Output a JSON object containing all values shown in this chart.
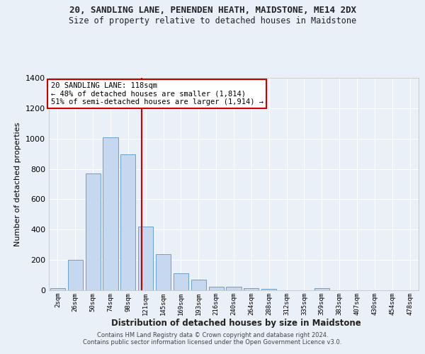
{
  "title": "20, SANDLING LANE, PENENDEN HEATH, MAIDSTONE, ME14 2DX",
  "subtitle": "Size of property relative to detached houses in Maidstone",
  "xlabel": "Distribution of detached houses by size in Maidstone",
  "ylabel": "Number of detached properties",
  "bar_color": "#c5d8ef",
  "bar_edge_color": "#6aa0cc",
  "background_color": "#eaf0f8",
  "grid_color": "#ffffff",
  "categories": [
    "2sqm",
    "26sqm",
    "50sqm",
    "74sqm",
    "98sqm",
    "121sqm",
    "145sqm",
    "169sqm",
    "193sqm",
    "216sqm",
    "240sqm",
    "264sqm",
    "288sqm",
    "312sqm",
    "335sqm",
    "359sqm",
    "383sqm",
    "407sqm",
    "430sqm",
    "454sqm",
    "478sqm"
  ],
  "values": [
    15,
    200,
    770,
    1010,
    895,
    420,
    240,
    110,
    70,
    25,
    25,
    15,
    10,
    0,
    0,
    15,
    0,
    0,
    0,
    0,
    0
  ],
  "ylim": [
    0,
    1400
  ],
  "yticks": [
    0,
    200,
    400,
    600,
    800,
    1000,
    1200,
    1400
  ],
  "property_line_x": 4.77,
  "annotation_text": "20 SANDLING LANE: 118sqm\n← 48% of detached houses are smaller (1,814)\n51% of semi-detached houses are larger (1,914) →",
  "annotation_box_color": "#ffffff",
  "annotation_box_edge_color": "#cc0000",
  "red_line_color": "#cc0000",
  "footer1": "Contains HM Land Registry data © Crown copyright and database right 2024.",
  "footer2": "Contains public sector information licensed under the Open Government Licence v3.0."
}
